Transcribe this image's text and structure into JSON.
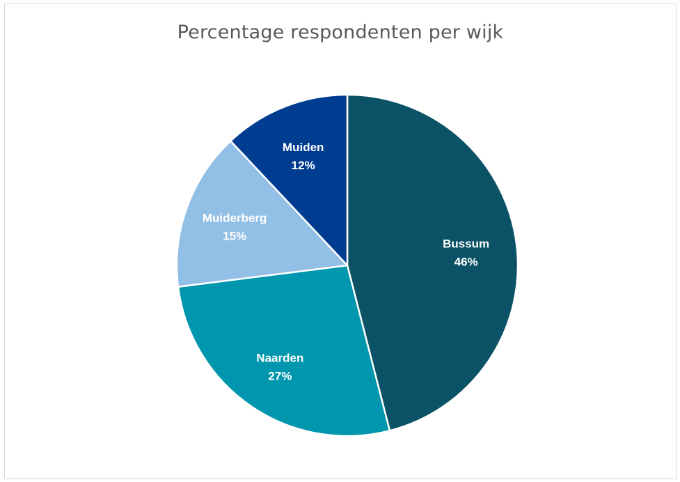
{
  "chart_data": {
    "type": "pie",
    "title": "Percentage respondenten per wijk",
    "slices": [
      {
        "label": "Bussum",
        "value": 46,
        "value_label": "46%",
        "color": "#0b5266"
      },
      {
        "label": "Naarden",
        "value": 27,
        "value_label": "27%",
        "color": "#0097ae"
      },
      {
        "label": "Muiderberg",
        "value": 15,
        "value_label": "15%",
        "color": "#92bfe6"
      },
      {
        "label": "Muiden",
        "value": 12,
        "value_label": "12%",
        "color": "#003d91"
      }
    ],
    "start": "12 o'clock",
    "direction": "clockwise",
    "slice_border_color": "#ffffff",
    "legend": "none"
  }
}
